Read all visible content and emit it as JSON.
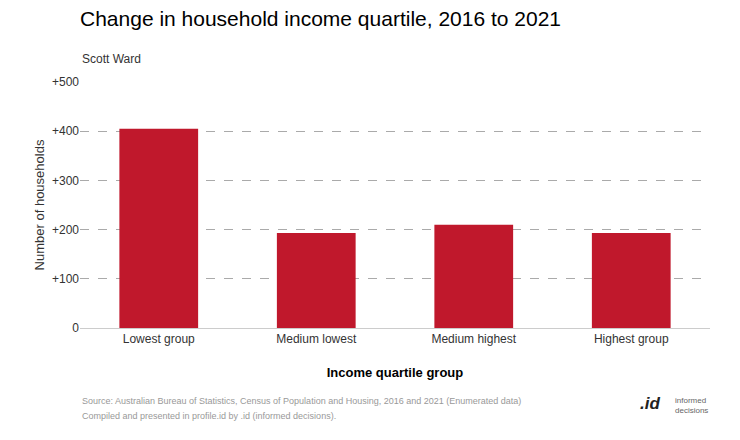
{
  "chart_data": {
    "type": "bar",
    "title": "Change in household income quartile, 2016 to 2021",
    "subtitle": "Scott Ward",
    "categories": [
      "Lowest group",
      "Medium lowest",
      "Medium highest",
      "Highest group"
    ],
    "values": [
      405,
      193,
      210,
      193
    ],
    "color": "#C0182C",
    "xlabel": "Income quartile group",
    "ylabel": "Number of households",
    "ylim": [
      0,
      500
    ],
    "yticks": [
      0,
      {
        "value": 100,
        "label": "+100"
      },
      {
        "value": 200,
        "label": "+200"
      },
      {
        "value": 300,
        "label": "+300"
      },
      {
        "value": 400,
        "label": "+400"
      },
      {
        "value": 500,
        "label": "+500"
      }
    ],
    "grid": true,
    "annotations": [
      "Source: Australian Bureau of Statistics, Census of Population and Housing, 2016 and 2021 (Enumerated data)",
      "Compiled and presented in profile.id by .id (informed decisions).",
      ".id",
      "informed\ndecisions"
    ]
  }
}
